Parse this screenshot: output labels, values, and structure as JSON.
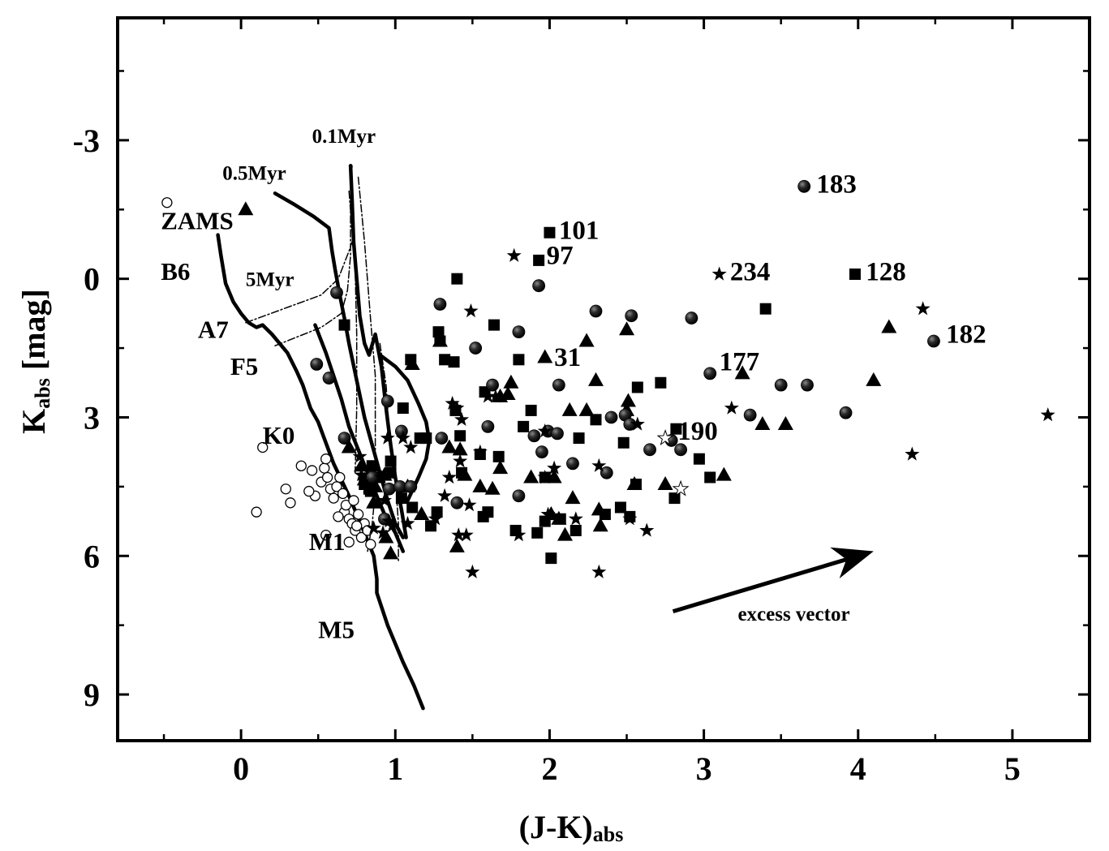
{
  "chart_data": {
    "type": "scatter",
    "title": "",
    "xlabel": {
      "main": "(J-K)",
      "sub": "abs"
    },
    "ylabel": {
      "main": "K",
      "sub": "abs",
      "rest": " [mag]"
    },
    "xlim": [
      -0.8,
      5.5
    ],
    "ylim": [
      10.0,
      -5.65
    ],
    "y_inverted": true,
    "x_ticks": [
      0,
      1,
      2,
      3,
      4,
      5
    ],
    "y_ticks": [
      -3,
      0,
      3,
      6,
      9
    ],
    "x_tick_labels": [
      "0",
      "1",
      "2",
      "3",
      "4",
      "5"
    ],
    "y_tick_labels": [
      "-3",
      "0",
      "3",
      "6",
      "9"
    ],
    "grid": false,
    "lines": [
      {
        "name": "ms",
        "style": "thick",
        "points": [
          [
            -0.15,
            -0.95
          ],
          [
            -0.13,
            -0.5
          ],
          [
            -0.1,
            0.1
          ],
          [
            -0.05,
            0.5
          ],
          [
            0.0,
            0.75
          ],
          [
            0.05,
            0.95
          ],
          [
            0.1,
            1.05
          ],
          [
            0.14,
            1.0
          ],
          [
            0.2,
            1.2
          ],
          [
            0.3,
            1.6
          ],
          [
            0.36,
            2.0
          ],
          [
            0.4,
            2.3
          ],
          [
            0.45,
            2.8
          ],
          [
            0.5,
            3.1
          ],
          [
            0.55,
            3.55
          ],
          [
            0.6,
            4.0
          ],
          [
            0.7,
            4.7
          ],
          [
            0.8,
            5.5
          ],
          [
            0.86,
            6.0
          ],
          [
            0.88,
            6.5
          ],
          [
            0.88,
            6.8
          ],
          [
            0.95,
            7.5
          ],
          [
            1.05,
            8.3
          ],
          [
            1.12,
            8.8
          ],
          [
            1.18,
            9.3
          ]
        ]
      },
      {
        "name": "iso-0.1",
        "style": "thick",
        "points": [
          [
            0.71,
            -2.45
          ],
          [
            0.72,
            -1.7
          ],
          [
            0.73,
            -0.8
          ],
          [
            0.75,
            0.0
          ],
          [
            0.77,
            0.8
          ],
          [
            0.8,
            1.4
          ],
          [
            0.83,
            1.65
          ],
          [
            0.87,
            1.2
          ],
          [
            0.91,
            1.9
          ],
          [
            0.94,
            2.8
          ],
          [
            0.97,
            3.6
          ],
          [
            1.0,
            4.3
          ],
          [
            1.04,
            5.0
          ],
          [
            1.07,
            5.6
          ]
        ]
      },
      {
        "name": "iso-0.5",
        "style": "thick",
        "points": [
          [
            0.22,
            -1.85
          ],
          [
            0.35,
            -1.6
          ],
          [
            0.47,
            -1.35
          ],
          [
            0.57,
            -1.1
          ],
          [
            0.59,
            -0.6
          ],
          [
            0.61,
            -0.2
          ],
          [
            0.64,
            0.35
          ],
          [
            0.67,
            0.85
          ],
          [
            0.7,
            1.4
          ],
          [
            0.75,
            2.2
          ],
          [
            0.8,
            3.0
          ],
          [
            0.85,
            3.6
          ],
          [
            0.9,
            4.2
          ],
          [
            0.95,
            4.8
          ],
          [
            1.0,
            5.3
          ],
          [
            1.05,
            5.6
          ]
        ]
      },
      {
        "name": "iso-5",
        "style": "thick",
        "points": [
          [
            0.48,
            1.0
          ],
          [
            0.55,
            1.6
          ],
          [
            0.6,
            2.1
          ],
          [
            0.65,
            2.6
          ],
          [
            0.7,
            3.2
          ],
          [
            0.76,
            3.7
          ],
          [
            0.82,
            4.2
          ],
          [
            0.88,
            4.7
          ],
          [
            0.93,
            5.1
          ],
          [
            1.0,
            5.5
          ],
          [
            1.05,
            5.9
          ]
        ]
      },
      {
        "name": "iso-extra",
        "style": "thick",
        "points": [
          [
            0.9,
            1.65
          ],
          [
            1.0,
            1.9
          ],
          [
            1.08,
            2.2
          ],
          [
            1.15,
            2.7
          ],
          [
            1.2,
            3.1
          ],
          [
            1.22,
            3.5
          ],
          [
            1.2,
            3.9
          ],
          [
            1.15,
            4.3
          ],
          [
            1.08,
            4.8
          ]
        ]
      },
      {
        "name": "track-a",
        "style": "dashdot",
        "points": [
          [
            0.03,
            0.95
          ],
          [
            0.52,
            0.35
          ],
          [
            0.63,
            0.0
          ],
          [
            0.7,
            -0.6
          ],
          [
            0.72,
            -0.8
          ]
        ]
      },
      {
        "name": "track-b",
        "style": "dashdot",
        "points": [
          [
            0.22,
            1.45
          ],
          [
            0.52,
            1.05
          ],
          [
            0.65,
            0.75
          ],
          [
            0.69,
            0.25
          ],
          [
            0.71,
            -0.5
          ],
          [
            0.71,
            -0.9
          ],
          [
            0.71,
            -1.7
          ],
          [
            0.72,
            -2.45
          ]
        ]
      },
      {
        "name": "track-c",
        "style": "dashdot",
        "points": [
          [
            0.7,
            -1.9
          ],
          [
            0.74,
            -0.2
          ],
          [
            0.75,
            1.2
          ],
          [
            0.75,
            2.8
          ],
          [
            0.74,
            4.2
          ]
        ]
      },
      {
        "name": "track-d",
        "style": "dashdot",
        "points": [
          [
            0.76,
            -2.2
          ],
          [
            0.8,
            -0.8
          ],
          [
            0.84,
            0.9
          ],
          [
            0.87,
            2.1
          ],
          [
            0.87,
            3.2
          ],
          [
            0.87,
            4.6
          ],
          [
            0.85,
            5.3
          ],
          [
            0.82,
            5.9
          ]
        ]
      },
      {
        "name": "track-e",
        "style": "dashdot",
        "points": [
          [
            0.9,
            1.4
          ],
          [
            0.94,
            2.3
          ],
          [
            0.96,
            3.3
          ],
          [
            1.0,
            4.3
          ],
          [
            1.02,
            5.3
          ],
          [
            1.02,
            6.1
          ]
        ]
      }
    ],
    "open_circles": [
      [
        -0.48,
        -1.65
      ],
      [
        0.14,
        3.65
      ],
      [
        0.1,
        5.05
      ],
      [
        0.29,
        4.55
      ],
      [
        0.32,
        4.85
      ],
      [
        0.39,
        4.05
      ],
      [
        0.46,
        4.15
      ],
      [
        0.48,
        4.7
      ],
      [
        0.52,
        4.4
      ],
      [
        0.54,
        4.1
      ],
      [
        0.56,
        4.3
      ],
      [
        0.55,
        3.9
      ],
      [
        0.58,
        4.55
      ],
      [
        0.6,
        4.75
      ],
      [
        0.62,
        4.5
      ],
      [
        0.64,
        4.3
      ],
      [
        0.66,
        4.65
      ],
      [
        0.67,
        5.05
      ],
      [
        0.68,
        4.9
      ],
      [
        0.7,
        5.2
      ],
      [
        0.72,
        5.3
      ],
      [
        0.73,
        4.8
      ],
      [
        0.74,
        5.45
      ],
      [
        0.76,
        5.1
      ],
      [
        0.78,
        5.6
      ],
      [
        0.8,
        5.3
      ],
      [
        0.82,
        5.45
      ],
      [
        0.63,
        5.15
      ],
      [
        0.7,
        5.7
      ],
      [
        0.75,
        5.35
      ],
      [
        0.84,
        5.75
      ],
      [
        0.55,
        5.55
      ],
      [
        0.44,
        4.6
      ]
    ],
    "open_stars": [
      [
        2.75,
        3.45
      ],
      [
        2.85,
        4.55
      ]
    ],
    "spheres": [
      [
        3.65,
        -2.0
      ],
      [
        1.93,
        0.15
      ],
      [
        1.29,
        0.55
      ],
      [
        2.3,
        0.7
      ],
      [
        2.53,
        0.8
      ],
      [
        2.92,
        0.85
      ],
      [
        1.8,
        1.15
      ],
      [
        1.52,
        1.5
      ],
      [
        0.49,
        1.85
      ],
      [
        0.57,
        2.15
      ],
      [
        1.63,
        2.3
      ],
      [
        2.06,
        2.3
      ],
      [
        0.95,
        2.65
      ],
      [
        3.5,
        2.3
      ],
      [
        3.67,
        2.3
      ],
      [
        3.92,
        2.9
      ],
      [
        3.04,
        2.05
      ],
      [
        4.49,
        1.35
      ],
      [
        0.62,
        0.3
      ],
      [
        0.67,
        3.45
      ],
      [
        1.04,
        3.3
      ],
      [
        1.3,
        3.45
      ],
      [
        1.6,
        3.2
      ],
      [
        1.99,
        3.3
      ],
      [
        1.9,
        3.4
      ],
      [
        2.05,
        3.35
      ],
      [
        2.49,
        2.95
      ],
      [
        2.4,
        3.0
      ],
      [
        2.52,
        3.15
      ],
      [
        3.3,
        2.95
      ],
      [
        2.85,
        3.7
      ],
      [
        2.65,
        3.7
      ],
      [
        1.95,
        3.75
      ],
      [
        2.15,
        4.0
      ],
      [
        2.37,
        4.2
      ],
      [
        0.85,
        4.3
      ],
      [
        0.96,
        4.55
      ],
      [
        1.03,
        4.5
      ],
      [
        1.1,
        4.5
      ],
      [
        1.4,
        4.85
      ],
      [
        1.8,
        4.7
      ],
      [
        0.93,
        5.2
      ],
      [
        2.79,
        3.5
      ]
    ],
    "squares": [
      [
        2.0,
        -1.0
      ],
      [
        1.93,
        -0.4
      ],
      [
        1.4,
        0.0
      ],
      [
        3.98,
        -0.1
      ],
      [
        3.4,
        0.65
      ],
      [
        0.67,
        1.0
      ],
      [
        1.64,
        1.0
      ],
      [
        1.28,
        1.15
      ],
      [
        1.29,
        1.35
      ],
      [
        1.1,
        1.75
      ],
      [
        1.8,
        1.75
      ],
      [
        1.32,
        1.75
      ],
      [
        1.38,
        1.8
      ],
      [
        2.57,
        2.35
      ],
      [
        2.72,
        2.25
      ],
      [
        1.58,
        2.45
      ],
      [
        1.05,
        2.8
      ],
      [
        1.39,
        2.85
      ],
      [
        1.88,
        2.85
      ],
      [
        2.3,
        3.05
      ],
      [
        1.42,
        3.4
      ],
      [
        1.16,
        3.45
      ],
      [
        1.2,
        3.45
      ],
      [
        1.83,
        3.2
      ],
      [
        2.19,
        3.45
      ],
      [
        2.82,
        3.25
      ],
      [
        2.48,
        3.55
      ],
      [
        1.55,
        3.8
      ],
      [
        1.67,
        3.85
      ],
      [
        2.97,
        3.9
      ],
      [
        3.04,
        4.3
      ],
      [
        1.43,
        4.2
      ],
      [
        0.97,
        3.95
      ],
      [
        0.97,
        4.2
      ],
      [
        0.85,
        4.05
      ],
      [
        0.83,
        4.55
      ],
      [
        0.8,
        4.45
      ],
      [
        2.56,
        4.45
      ],
      [
        1.97,
        4.3
      ],
      [
        2.81,
        4.75
      ],
      [
        1.04,
        4.75
      ],
      [
        1.11,
        4.95
      ],
      [
        1.27,
        5.05
      ],
      [
        1.23,
        5.35
      ],
      [
        1.57,
        5.15
      ],
      [
        1.97,
        5.25
      ],
      [
        2.07,
        5.2
      ],
      [
        2.17,
        5.45
      ],
      [
        2.36,
        5.1
      ],
      [
        2.46,
        4.95
      ],
      [
        2.52,
        5.15
      ],
      [
        2.01,
        6.05
      ],
      [
        1.78,
        5.45
      ],
      [
        1.92,
        5.5
      ],
      [
        1.6,
        5.05
      ],
      [
        0.84,
        4.6
      ],
      [
        0.88,
        4.3
      ]
    ],
    "triangles": [
      [
        0.03,
        -1.5
      ],
      [
        1.97,
        1.7
      ],
      [
        2.24,
        1.35
      ],
      [
        2.5,
        1.1
      ],
      [
        1.11,
        1.85
      ],
      [
        1.29,
        1.35
      ],
      [
        1.75,
        2.25
      ],
      [
        1.68,
        2.55
      ],
      [
        2.3,
        2.2
      ],
      [
        1.73,
        2.5
      ],
      [
        2.13,
        2.85
      ],
      [
        2.24,
        2.85
      ],
      [
        2.51,
        2.65
      ],
      [
        2.5,
        2.85
      ],
      [
        3.25,
        2.05
      ],
      [
        3.38,
        3.15
      ],
      [
        3.53,
        3.15
      ],
      [
        4.1,
        2.2
      ],
      [
        4.2,
        1.05
      ],
      [
        0.7,
        3.65
      ],
      [
        1.35,
        3.65
      ],
      [
        1.42,
        3.7
      ],
      [
        1.45,
        4.25
      ],
      [
        1.68,
        4.1
      ],
      [
        1.88,
        4.3
      ],
      [
        2.03,
        4.3
      ],
      [
        0.8,
        4.35
      ],
      [
        0.87,
        4.5
      ],
      [
        0.93,
        4.25
      ],
      [
        0.86,
        4.85
      ],
      [
        1.08,
        4.5
      ],
      [
        1.17,
        5.1
      ],
      [
        1.55,
        4.5
      ],
      [
        1.63,
        4.55
      ],
      [
        1.4,
        5.8
      ],
      [
        0.97,
        5.95
      ],
      [
        0.94,
        5.6
      ],
      [
        2.15,
        4.75
      ],
      [
        2.01,
        5.1
      ],
      [
        2.06,
        5.2
      ],
      [
        2.32,
        5.0
      ],
      [
        2.75,
        4.45
      ],
      [
        3.13,
        4.25
      ],
      [
        2.1,
        5.55
      ],
      [
        2.55,
        4.45
      ],
      [
        2.33,
        5.35
      ],
      [
        0.78,
        4.05
      ]
    ],
    "stars": [
      [
        1.77,
        -0.5
      ],
      [
        3.1,
        -0.1
      ],
      [
        1.49,
        0.7
      ],
      [
        4.42,
        0.65
      ],
      [
        1.37,
        2.7
      ],
      [
        1.6,
        2.55
      ],
      [
        1.65,
        2.55
      ],
      [
        1.4,
        2.8
      ],
      [
        1.43,
        3.05
      ],
      [
        1.97,
        3.3
      ],
      [
        1.05,
        3.45
      ],
      [
        0.95,
        3.45
      ],
      [
        1.1,
        3.65
      ],
      [
        0.77,
        3.85
      ],
      [
        1.35,
        4.3
      ],
      [
        1.42,
        3.95
      ],
      [
        1.55,
        3.75
      ],
      [
        2.32,
        4.05
      ],
      [
        2.03,
        4.1
      ],
      [
        1.97,
        4.3
      ],
      [
        3.18,
        2.8
      ],
      [
        4.35,
        3.8
      ],
      [
        5.23,
        2.95
      ],
      [
        2.57,
        3.15
      ],
      [
        1.48,
        4.9
      ],
      [
        1.32,
        4.7
      ],
      [
        1.26,
        5.2
      ],
      [
        1.08,
        5.3
      ],
      [
        1.41,
        5.55
      ],
      [
        1.46,
        5.55
      ],
      [
        1.8,
        5.55
      ],
      [
        1.99,
        5.1
      ],
      [
        2.17,
        5.2
      ],
      [
        2.52,
        5.2
      ],
      [
        2.63,
        5.45
      ],
      [
        2.32,
        6.35
      ],
      [
        1.5,
        6.35
      ],
      [
        0.86,
        5.4
      ],
      [
        0.82,
        4.5
      ],
      [
        0.91,
        4.3
      ],
      [
        0.78,
        4.25
      ],
      [
        0.93,
        4.8
      ],
      [
        0.96,
        5.25
      ],
      [
        0.92,
        5.5
      ],
      [
        0.98,
        5.35
      ]
    ],
    "point_labels": [
      {
        "text": "183",
        "x": 3.73,
        "y": -2.0
      },
      {
        "text": "101",
        "x": 2.06,
        "y": -1.0
      },
      {
        "text": "97",
        "x": 1.98,
        "y": -0.45
      },
      {
        "text": "234",
        "x": 3.17,
        "y": -0.1
      },
      {
        "text": "128",
        "x": 4.05,
        "y": -0.1
      },
      {
        "text": "182",
        "x": 4.57,
        "y": 1.25
      },
      {
        "text": "31",
        "x": 2.03,
        "y": 1.75
      },
      {
        "text": "177",
        "x": 3.1,
        "y": 1.85
      },
      {
        "text": "190",
        "x": 2.83,
        "y": 3.35
      }
    ],
    "curve_labels": [
      {
        "text": "0.1Myr",
        "x": 0.46,
        "y": -3.05
      },
      {
        "text": "0.5Myr",
        "x": -0.12,
        "y": -2.25
      },
      {
        "text": "ZAMS",
        "x": -0.52,
        "y": -1.2
      },
      {
        "text": "B6",
        "x": -0.52,
        "y": -0.1
      },
      {
        "text": "5Myr",
        "x": 0.03,
        "y": 0.05
      },
      {
        "text": "A7",
        "x": -0.28,
        "y": 1.15
      },
      {
        "text": "F5",
        "x": -0.07,
        "y": 1.95
      },
      {
        "text": "K0",
        "x": 0.14,
        "y": 3.45
      },
      {
        "text": "M1",
        "x": 0.44,
        "y": 5.75
      },
      {
        "text": "M5",
        "x": 0.5,
        "y": 7.65
      }
    ],
    "vector": {
      "label": "excess vector",
      "from": [
        2.8,
        7.2
      ],
      "to": [
        4.05,
        5.95
      ],
      "label_x": 3.22,
      "label_y": 7.4
    }
  }
}
